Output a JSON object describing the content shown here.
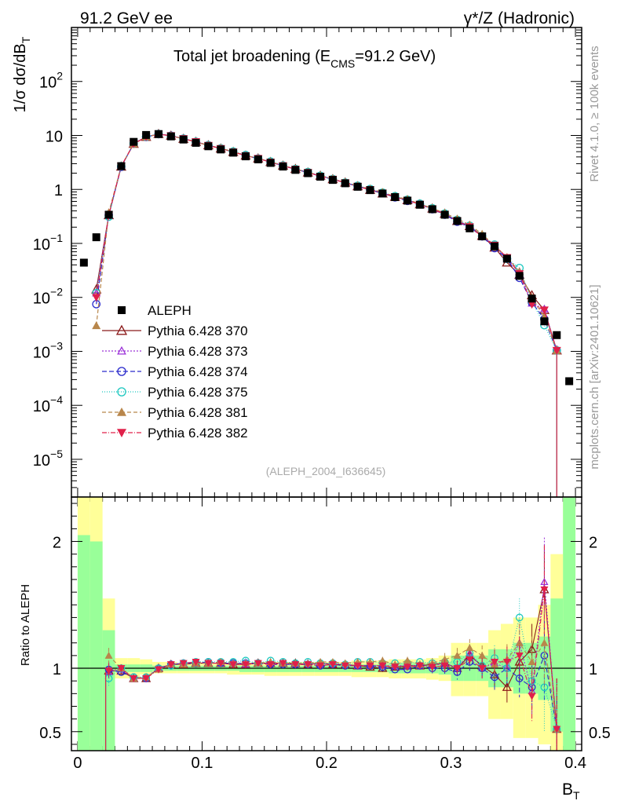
{
  "header": {
    "left": "91.2 GeV ee",
    "right": "γ*/Z (Hadronic)"
  },
  "side_labels": {
    "rivet": "Rivet 4.1.0, ≥ 100k events",
    "mcplots": "mcplots.cern.ch [arXiv:2401.10621]"
  },
  "chart_data": {
    "type": "scatter",
    "title_main": "Total jet broadening (E",
    "title_sub": "CMS",
    "title_tail": "=91.2 GeV)",
    "watermark": "(ALEPH_2004_I636645)",
    "xlabel_main": "B",
    "xlabel_sub": "T",
    "ylabel_main": "1/σ  dσ/dB",
    "ylabel_sub": "T",
    "ratio_ylabel": "Ratio to ALEPH",
    "xlim": [
      -0.005,
      0.405
    ],
    "ylim_log": [
      2e-06,
      1000
    ],
    "ratio_ylim": [
      0.35,
      2.35
    ],
    "x_ticks": [
      {
        "v": 0,
        "label": "0"
      },
      {
        "v": 0.1,
        "label": "0.1"
      },
      {
        "v": 0.2,
        "label": "0.2"
      },
      {
        "v": 0.3,
        "label": "0.3"
      },
      {
        "v": 0.4,
        "label": "0.4"
      }
    ],
    "y_ticks": [
      {
        "v": 1e-05,
        "base": "10",
        "exp": "−5"
      },
      {
        "v": 0.0001,
        "base": "10",
        "exp": "−4"
      },
      {
        "v": 0.001,
        "base": "10",
        "exp": "−3"
      },
      {
        "v": 0.01,
        "base": "10",
        "exp": "−2"
      },
      {
        "v": 0.1,
        "base": "10",
        "exp": "−1"
      },
      {
        "v": 1,
        "base": "1",
        "exp": ""
      },
      {
        "v": 10,
        "base": "10",
        "exp": ""
      },
      {
        "v": 100,
        "base": "10",
        "exp": "2"
      }
    ],
    "ratio_ticks": [
      {
        "v": 0.5,
        "label": "0.5"
      },
      {
        "v": 1,
        "label": "1"
      },
      {
        "v": 2,
        "label": "2"
      }
    ],
    "x": [
      0.005,
      0.015,
      0.025,
      0.035,
      0.045,
      0.055,
      0.065,
      0.075,
      0.085,
      0.095,
      0.105,
      0.115,
      0.125,
      0.135,
      0.145,
      0.155,
      0.165,
      0.175,
      0.185,
      0.195,
      0.205,
      0.215,
      0.225,
      0.235,
      0.245,
      0.255,
      0.265,
      0.275,
      0.285,
      0.295,
      0.305,
      0.315,
      0.325,
      0.335,
      0.345,
      0.355,
      0.365,
      0.375,
      0.385,
      0.395
    ],
    "aleph": [
      0.044,
      0.13,
      0.34,
      2.7,
      7.6,
      10.2,
      10.6,
      9.6,
      8.4,
      7.3,
      6.3,
      5.5,
      4.8,
      4.1,
      3.6,
      3.1,
      2.65,
      2.3,
      2.0,
      1.72,
      1.5,
      1.3,
      1.12,
      0.97,
      0.84,
      0.72,
      0.62,
      0.52,
      0.43,
      0.34,
      0.26,
      0.19,
      0.135,
      0.088,
      0.052,
      0.025,
      0.0095,
      0.0036,
      0.002,
      0.00028
    ],
    "band_outer": [
      [
        0.3,
        2.4
      ],
      [
        0.3,
        2.4
      ],
      [
        0.45,
        1.55
      ],
      [
        0.92,
        1.08
      ],
      [
        0.92,
        1.08
      ],
      [
        0.95,
        1.07
      ],
      [
        0.96,
        1.05
      ],
      [
        0.96,
        1.05
      ],
      [
        0.96,
        1.04
      ],
      [
        0.96,
        1.04
      ],
      [
        0.96,
        1.04
      ],
      [
        0.96,
        1.04
      ],
      [
        0.95,
        1.04
      ],
      [
        0.95,
        1.04
      ],
      [
        0.95,
        1.05
      ],
      [
        0.94,
        1.05
      ],
      [
        0.94,
        1.05
      ],
      [
        0.94,
        1.05
      ],
      [
        0.94,
        1.05
      ],
      [
        0.94,
        1.05
      ],
      [
        0.94,
        1.05
      ],
      [
        0.94,
        1.05
      ],
      [
        0.93,
        1.06
      ],
      [
        0.93,
        1.06
      ],
      [
        0.93,
        1.06
      ],
      [
        0.92,
        1.07
      ],
      [
        0.92,
        1.07
      ],
      [
        0.92,
        1.07
      ],
      [
        0.91,
        1.08
      ],
      [
        0.9,
        1.1
      ],
      [
        0.78,
        1.2
      ],
      [
        0.78,
        1.2
      ],
      [
        0.78,
        1.2
      ],
      [
        0.6,
        1.3
      ],
      [
        0.6,
        1.35
      ],
      [
        0.45,
        1.4
      ],
      [
        0.45,
        1.4
      ],
      [
        0.4,
        1.5
      ],
      [
        0.3,
        1.9
      ],
      [
        0.3,
        2.4
      ]
    ],
    "band_inner": [
      [
        0.3,
        2.05
      ],
      [
        0.3,
        2.0
      ],
      [
        0.3,
        1.3
      ],
      [
        0.97,
        1.03
      ],
      [
        0.97,
        1.03
      ],
      [
        0.97,
        1.03
      ],
      [
        0.98,
        1.02
      ],
      [
        0.98,
        1.02
      ],
      [
        0.98,
        1.02
      ],
      [
        0.98,
        1.02
      ],
      [
        0.98,
        1.02
      ],
      [
        0.98,
        1.02
      ],
      [
        0.98,
        1.02
      ],
      [
        0.97,
        1.02
      ],
      [
        0.97,
        1.02
      ],
      [
        0.97,
        1.02
      ],
      [
        0.97,
        1.02
      ],
      [
        0.97,
        1.02
      ],
      [
        0.97,
        1.02
      ],
      [
        0.97,
        1.02
      ],
      [
        0.97,
        1.03
      ],
      [
        0.97,
        1.03
      ],
      [
        0.97,
        1.03
      ],
      [
        0.97,
        1.03
      ],
      [
        0.97,
        1.03
      ],
      [
        0.96,
        1.04
      ],
      [
        0.96,
        1.04
      ],
      [
        0.96,
        1.04
      ],
      [
        0.96,
        1.04
      ],
      [
        0.95,
        1.05
      ],
      [
        0.9,
        1.1
      ],
      [
        0.9,
        1.1
      ],
      [
        0.9,
        1.1
      ],
      [
        0.85,
        1.15
      ],
      [
        0.85,
        1.15
      ],
      [
        0.8,
        1.2
      ],
      [
        0.8,
        1.2
      ],
      [
        0.75,
        1.25
      ],
      [
        0.5,
        1.55
      ],
      [
        0.3,
        2.4
      ]
    ],
    "series": [
      {
        "name": "Pythia 6.428 370",
        "color": "#8b1a1a",
        "marker": "triangle-open",
        "dash": "",
        "ratio": [
          null,
          null,
          0.98,
          0.98,
          0.92,
          0.92,
          1.0,
          1.03,
          1.03,
          1.04,
          1.04,
          1.04,
          1.03,
          1.03,
          1.04,
          1.04,
          1.04,
          1.04,
          1.03,
          1.04,
          1.03,
          1.03,
          1.02,
          1.01,
          1.0,
          1.01,
          1.02,
          1.02,
          1.03,
          1.04,
          1.0,
          1.1,
          1.02,
          0.95,
          0.85,
          1.05,
          1.15,
          1.62,
          0.52,
          null
        ]
      },
      {
        "name": "Pythia 6.428 373",
        "color": "#9b30d8",
        "marker": "triangle-open-small",
        "dash": "2,2",
        "ratio": [
          null,
          null,
          0.97,
          0.99,
          0.92,
          0.93,
          1.0,
          1.03,
          1.04,
          1.04,
          1.04,
          1.04,
          1.04,
          1.03,
          1.04,
          1.04,
          1.04,
          1.03,
          1.04,
          1.03,
          1.04,
          1.03,
          1.02,
          1.02,
          1.02,
          1.02,
          1.02,
          1.02,
          1.02,
          1.04,
          1.0,
          1.12,
          1.0,
          1.04,
          1.0,
          1.2,
          0.82,
          1.68,
          0.52,
          null
        ]
      },
      {
        "name": "Pythia 6.428 374",
        "color": "#2a2acc",
        "marker": "circle-open",
        "dash": "6,3",
        "ratio": [
          null,
          null,
          0.99,
          0.97,
          0.93,
          0.92,
          1.0,
          1.03,
          1.04,
          1.04,
          1.05,
          1.04,
          1.04,
          1.04,
          1.04,
          1.03,
          1.03,
          1.03,
          1.03,
          1.02,
          1.03,
          1.02,
          1.02,
          1.02,
          1.01,
          0.99,
          0.99,
          1.02,
          1.0,
          1.0,
          0.97,
          1.05,
          1.0,
          0.93,
          1.0,
          0.92,
          0.85,
          1.1,
          0.52,
          null
        ]
      },
      {
        "name": "Pythia 6.428 375",
        "color": "#1ec8c0",
        "marker": "circle-open",
        "dash": "1,2",
        "ratio": [
          null,
          null,
          0.92,
          1.0,
          0.93,
          0.93,
          1.0,
          1.02,
          1.04,
          1.05,
          1.05,
          1.05,
          1.05,
          1.06,
          1.04,
          1.06,
          1.05,
          1.04,
          1.05,
          1.04,
          1.04,
          1.03,
          1.05,
          1.05,
          1.04,
          1.04,
          1.04,
          1.05,
          1.04,
          1.05,
          1.05,
          1.12,
          1.02,
          1.08,
          1.0,
          1.4,
          0.9,
          0.85,
          0.52,
          null
        ]
      },
      {
        "name": "Pythia 6.428 381",
        "color": "#b8864b",
        "marker": "triangle-filled",
        "dash": "5,3",
        "ratio": [
          null,
          null,
          1.1,
          1.0,
          0.92,
          0.93,
          0.99,
          1.03,
          1.03,
          1.04,
          1.04,
          1.05,
          1.04,
          1.04,
          1.04,
          1.05,
          1.04,
          1.04,
          1.04,
          1.05,
          1.05,
          1.04,
          1.05,
          1.05,
          1.06,
          1.03,
          1.06,
          1.03,
          1.04,
          1.07,
          1.1,
          1.16,
          1.1,
          1.03,
          1.07,
          1.2,
          1.05,
          1.2,
          0.52,
          null
        ]
      },
      {
        "name": "Pythia 6.428 382",
        "color": "#e0204a",
        "marker": "triangle-down-filled",
        "dash": "6,2,1,2",
        "ratio": [
          null,
          null,
          0.98,
          1.0,
          0.92,
          0.92,
          0.99,
          1.03,
          1.04,
          1.05,
          1.04,
          1.04,
          1.03,
          1.03,
          1.04,
          1.03,
          1.04,
          1.03,
          1.03,
          1.02,
          1.03,
          1.02,
          1.02,
          1.02,
          1.02,
          1.01,
          1.01,
          1.02,
          1.01,
          1.02,
          1.0,
          1.07,
          1.0,
          1.05,
          1.05,
          1.1,
          0.78,
          1.62,
          0.52,
          null
        ]
      }
    ],
    "ratio_errors": [
      [
        0.0,
        0.0,
        0.06,
        0.03,
        0.02,
        0.02,
        0.02,
        0.02,
        0.02,
        0.02,
        0.02,
        0.02,
        0.02,
        0.02,
        0.02,
        0.02,
        0.02,
        0.02,
        0.02,
        0.02,
        0.02,
        0.02,
        0.02,
        0.02,
        0.03,
        0.03,
        0.03,
        0.03,
        0.04,
        0.05,
        0.06,
        0.07,
        0.08,
        0.1,
        0.12,
        0.15,
        0.2,
        0.35,
        0.4,
        0.0
      ]
    ]
  }
}
